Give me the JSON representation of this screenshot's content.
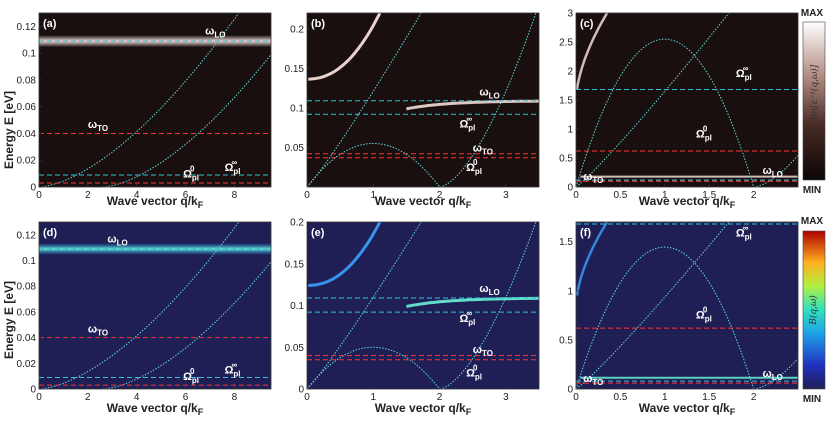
{
  "figure": {
    "colors": {
      "top_bg": "#1a0f0f",
      "bottom_bg": "#1f1f55",
      "dashed_red": "#ff3333",
      "dashed_cyan": "#2fc4dd",
      "dotted_curve": "#5fd9d9"
    },
    "ylabel": "Energy E [eV]",
    "xlabel": "Wave vector q/k",
    "xlabel_sub": "F",
    "colorbars": [
      {
        "max": "MAX",
        "min": "MIN",
        "label": "-π⁻¹Im[ε⁻¹(q,ω)]"
      },
      {
        "max": "MAX",
        "min": "MIN",
        "label": "B(q,ω)"
      }
    ],
    "panels": [
      {
        "id": "a",
        "tag": "(a)",
        "bg": "top",
        "xlim": [
          0,
          9.5
        ],
        "ylim": [
          0,
          0.13
        ],
        "xticks": [
          0,
          2,
          4,
          6,
          8
        ],
        "yticks": [
          0,
          0.02,
          0.04,
          0.06,
          0.08,
          0.1,
          0.12
        ],
        "ytick_labels": [
          "0",
          "0.02",
          "0.04",
          "0.06",
          "0.08",
          "0.1",
          "0.12"
        ],
        "xtick_labels": [
          "0",
          "2",
          "4",
          "6",
          "8"
        ],
        "red_dashes": [
          0.04,
          0.003
        ],
        "cyan_dashes": [
          0.109,
          0.009
        ],
        "annotations": [
          {
            "text": "ω",
            "sub": "LO",
            "x": 6.8,
            "y": 0.114
          },
          {
            "text": "ω",
            "sub": "TO",
            "x": 2.0,
            "y": 0.044
          },
          {
            "text": "Ω",
            "sub": "pl",
            "sup": "0",
            "x": 5.9,
            "y": 0.007
          },
          {
            "text": "Ω",
            "sub": "pl",
            "sup": "∞",
            "x": 7.6,
            "y": 0.012
          }
        ]
      },
      {
        "id": "b",
        "tag": "(b)",
        "bg": "top",
        "xlim": [
          0,
          3.5
        ],
        "ylim": [
          0,
          0.22
        ],
        "xticks": [
          0,
          1,
          2,
          3
        ],
        "yticks": [
          0.05,
          0.1,
          0.15,
          0.2
        ],
        "xtick_labels": [
          "0",
          "1",
          "2",
          "3"
        ],
        "ytick_labels": [
          "0.05",
          "0.1",
          "0.15",
          "0.2"
        ],
        "red_dashes": [
          0.042,
          0.037
        ],
        "cyan_dashes": [
          0.109,
          0.092
        ],
        "annotations": [
          {
            "text": "ω",
            "sub": "LO",
            "x": 2.6,
            "y": 0.116
          },
          {
            "text": "Ω",
            "sub": "pl",
            "sup": "∞",
            "x": 2.3,
            "y": 0.075
          },
          {
            "text": "ω",
            "sub": "TO",
            "x": 2.5,
            "y": 0.045
          },
          {
            "text": "Ω",
            "sub": "pl",
            "sup": "0",
            "x": 2.4,
            "y": 0.02
          }
        ]
      },
      {
        "id": "c",
        "tag": "(c)",
        "bg": "top",
        "xlim": [
          0,
          2.5
        ],
        "ylim": [
          0,
          3
        ],
        "xticks": [
          0,
          0.5,
          1,
          1.5,
          2
        ],
        "yticks": [
          0,
          0.5,
          1,
          1.5,
          2,
          2.5,
          3
        ],
        "xtick_labels": [
          "0",
          "0.5",
          "1",
          "1.5",
          "2"
        ],
        "ytick_labels": [
          "0",
          "0.5",
          "1",
          "1.5",
          "2",
          "2.5",
          "3"
        ],
        "red_dashes": [
          0.62,
          0.1
        ],
        "cyan_dashes": [
          1.68,
          0.12
        ],
        "annotations": [
          {
            "text": "Ω",
            "sub": "pl",
            "sup": "∞",
            "x": 1.8,
            "y": 1.9
          },
          {
            "text": "Ω",
            "sub": "pl",
            "sup": "0",
            "x": 1.35,
            "y": 0.85
          },
          {
            "text": "ω",
            "sub": "TO",
            "x": 0.08,
            "y": 0.12
          },
          {
            "text": "ω",
            "sub": "LO",
            "x": 2.1,
            "y": 0.22
          }
        ]
      },
      {
        "id": "d",
        "tag": "(d)",
        "bg": "bottom",
        "xlim": [
          0,
          9.5
        ],
        "ylim": [
          0,
          0.13
        ],
        "xticks": [
          0,
          2,
          4,
          6,
          8
        ],
        "yticks": [
          0,
          0.02,
          0.04,
          0.06,
          0.08,
          0.1,
          0.12
        ],
        "xtick_labels": [
          "0",
          "2",
          "4",
          "6",
          "8"
        ],
        "ytick_labels": [
          "0",
          "0.02",
          "0.04",
          "0.06",
          "0.08",
          "0.1",
          "0.12"
        ],
        "red_dashes": [
          0.04,
          0.003
        ],
        "cyan_dashes": [
          0.109,
          0.009
        ],
        "annotations": [
          {
            "text": "ω",
            "sub": "LO",
            "x": 2.8,
            "y": 0.114
          },
          {
            "text": "ω",
            "sub": "TO",
            "x": 2.0,
            "y": 0.044
          },
          {
            "text": "Ω",
            "sub": "pl",
            "sup": "0",
            "x": 5.9,
            "y": 0.007
          },
          {
            "text": "Ω",
            "sub": "pl",
            "sup": "∞",
            "x": 7.6,
            "y": 0.012
          }
        ]
      },
      {
        "id": "e",
        "tag": "(e)",
        "bg": "bottom",
        "xlim": [
          0,
          3.5
        ],
        "ylim": [
          0,
          0.2
        ],
        "xticks": [
          0,
          1,
          2,
          3
        ],
        "yticks": [
          0,
          0.05,
          0.1,
          0.15,
          0.2
        ],
        "xtick_labels": [
          "0",
          "1",
          "2",
          "3"
        ],
        "ytick_labels": [
          "0",
          "0.05",
          "0.1",
          "0.15",
          "0.2"
        ],
        "red_dashes": [
          0.04,
          0.035
        ],
        "cyan_dashes": [
          0.109,
          0.092
        ],
        "annotations": [
          {
            "text": "ω",
            "sub": "LO",
            "x": 2.6,
            "y": 0.116
          },
          {
            "text": "Ω",
            "sub": "pl",
            "sup": "∞",
            "x": 2.3,
            "y": 0.08
          },
          {
            "text": "ω",
            "sub": "TO",
            "x": 2.5,
            "y": 0.043
          },
          {
            "text": "Ω",
            "sub": "pl",
            "sup": "0",
            "x": 2.4,
            "y": 0.015
          }
        ]
      },
      {
        "id": "f",
        "tag": "(f)",
        "bg": "bottom",
        "xlim": [
          0,
          2.5
        ],
        "ylim": [
          0,
          1.7
        ],
        "xticks": [
          0,
          0.5,
          1,
          1.5,
          2
        ],
        "yticks": [
          0,
          0.5,
          1,
          1.5
        ],
        "xtick_labels": [
          "0",
          "0.5",
          "1",
          "1.5",
          "2"
        ],
        "ytick_labels": [
          "0",
          "0.5",
          "1",
          "1.5"
        ],
        "red_dashes": [
          0.62,
          0.06
        ],
        "cyan_dashes": [
          1.68,
          0.08
        ],
        "annotations": [
          {
            "text": "Ω",
            "sub": "pl",
            "sup": "∞",
            "x": 1.8,
            "y": 1.55
          },
          {
            "text": "Ω",
            "sub": "pl",
            "sup": "0",
            "x": 1.35,
            "y": 0.72
          },
          {
            "text": "ω",
            "sub": "TO",
            "x": 0.08,
            "y": 0.07
          },
          {
            "text": "ω",
            "sub": "LO",
            "x": 2.1,
            "y": 0.12
          }
        ]
      }
    ]
  }
}
